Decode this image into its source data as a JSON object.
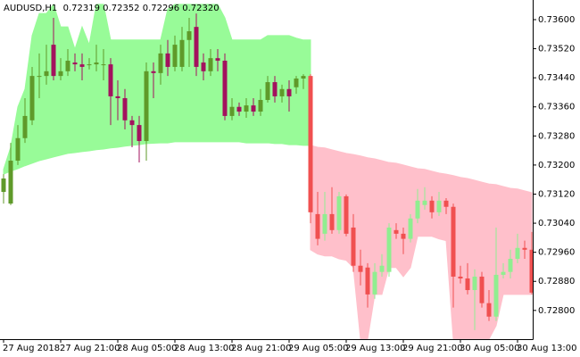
{
  "chart_data": {
    "type": "candlestick",
    "title": "AUDUSD,H1  0.72319 0.72352 0.72296 0.72320",
    "categories": [
      "27 Aug 2018",
      null,
      null,
      null,
      null,
      null,
      null,
      null,
      "27 Aug 21:00",
      null,
      null,
      null,
      null,
      null,
      null,
      null,
      "28 Aug 05:00",
      null,
      null,
      null,
      null,
      null,
      null,
      null,
      "28 Aug 13:00",
      null,
      null,
      null,
      null,
      null,
      null,
      null,
      "28 Aug 21:00",
      null,
      null,
      null,
      null,
      null,
      null,
      null,
      "29 Aug 05:00",
      null,
      null,
      null,
      null,
      null,
      null,
      null,
      "29 Aug 13:00",
      null,
      null,
      null,
      null,
      null,
      null,
      null,
      "29 Aug 21:00",
      null,
      null,
      null,
      null,
      null,
      null,
      null,
      "30 Aug 05:00",
      null,
      null,
      null,
      null,
      null,
      null,
      null,
      "30 Aug 13:00",
      null,
      null
    ],
    "ylim": [
      0.72721,
      0.73654
    ],
    "yticks": [
      {
        "value": 0.736,
        "label": "0.73600"
      },
      {
        "value": 0.7352,
        "label": "0.73520"
      },
      {
        "value": 0.7344,
        "label": "0.73440"
      },
      {
        "value": 0.7336,
        "label": "0.73360"
      },
      {
        "value": 0.7328,
        "label": "0.73280"
      },
      {
        "value": 0.732,
        "label": "0.73200"
      },
      {
        "value": 0.7312,
        "label": "0.73120"
      },
      {
        "value": 0.7304,
        "label": "0.73040"
      },
      {
        "value": 0.7296,
        "label": "0.72960"
      },
      {
        "value": 0.7288,
        "label": "0.72880"
      },
      {
        "value": 0.728,
        "label": "0.72800"
      }
    ],
    "grid": false,
    "series": [
      {
        "up_color": "#5f9a2a",
        "down_color": "#a3125e",
        "band_color": "#98fb98",
        "open": [
          0.73126,
          0.73094,
          0.73212,
          0.73274,
          0.73323,
          0.73445,
          0.73445,
          0.73531,
          0.73445,
          0.73458,
          0.73482,
          0.73477,
          0.73477,
          0.73477,
          0.73477,
          0.73477,
          0.73389,
          0.73384,
          0.73323,
          0.7331,
          0.73266,
          0.73458,
          0.73453,
          0.73507,
          0.7347,
          0.7347,
          0.73544,
          0.7358,
          0.73482,
          0.73458,
          0.73494,
          0.73487,
          0.73335,
          0.7336,
          0.73347,
          0.73364,
          0.73347,
          0.73379,
          0.73428,
          0.73389,
          0.73409,
          0.73414,
          0.73438,
          null,
          null,
          null,
          null,
          null,
          null,
          null,
          null,
          null,
          null,
          null,
          null,
          null,
          null,
          null,
          null,
          null,
          null,
          null,
          null,
          null,
          null,
          null,
          null,
          null,
          null,
          null,
          null,
          null,
          null,
          null,
          null
        ],
        "high": [
          0.73175,
          0.73261,
          0.7331,
          0.73384,
          0.7347,
          0.73507,
          0.73531,
          0.73605,
          0.73494,
          0.73519,
          0.73507,
          0.73507,
          0.73494,
          0.73531,
          0.73519,
          0.73494,
          0.73433,
          0.73409,
          0.73335,
          0.73335,
          0.73482,
          0.73482,
          0.73531,
          0.73544,
          0.73556,
          0.7358,
          0.73605,
          0.73617,
          0.73507,
          0.73519,
          0.73519,
          0.73507,
          0.73384,
          0.73372,
          0.73384,
          0.73384,
          0.73409,
          0.73445,
          0.73445,
          0.73421,
          0.73433,
          0.73445,
          0.7345,
          null,
          null,
          null,
          null,
          null,
          null,
          null,
          null,
          null,
          null,
          null,
          null,
          null,
          null,
          null,
          null,
          null,
          null,
          null,
          null,
          null,
          null,
          null,
          null,
          null,
          null,
          null,
          null,
          null,
          null,
          null,
          null
        ],
        "low": [
          0.73094,
          0.7309,
          0.732,
          0.73261,
          0.7331,
          0.73384,
          0.73421,
          0.73433,
          0.73433,
          0.73445,
          0.73458,
          0.73433,
          0.73463,
          0.73458,
          0.73433,
          0.7331,
          0.73323,
          0.73298,
          0.73249,
          0.73207,
          0.73212,
          0.73384,
          0.73421,
          0.73445,
          0.73458,
          0.73458,
          0.7347,
          0.73445,
          0.73433,
          0.73445,
          0.73458,
          0.73323,
          0.73323,
          0.73335,
          0.7333,
          0.73335,
          0.73335,
          0.73372,
          0.73372,
          0.73372,
          0.73347,
          0.73396,
          0.73409,
          null,
          null,
          null,
          null,
          null,
          null,
          null,
          null,
          null,
          null,
          null,
          null,
          null,
          null,
          null,
          null,
          null,
          null,
          null,
          null,
          null,
          null,
          null,
          null,
          null,
          null,
          null,
          null,
          null,
          null,
          null,
          null
        ],
        "close": [
          0.73163,
          0.73212,
          0.73274,
          0.73335,
          0.73445,
          0.73445,
          0.73458,
          0.73445,
          0.73458,
          0.73487,
          0.73477,
          0.7347,
          0.73477,
          0.73482,
          0.73477,
          0.73389,
          0.73384,
          0.73323,
          0.7331,
          0.73266,
          0.73458,
          0.73453,
          0.73507,
          0.7347,
          0.73531,
          0.73544,
          0.73568,
          0.7347,
          0.73458,
          0.73494,
          0.73487,
          0.73335,
          0.7336,
          0.73347,
          0.73364,
          0.73347,
          0.73379,
          0.73428,
          0.73389,
          0.73409,
          0.73389,
          0.73438,
          0.73445,
          null,
          null,
          null,
          null,
          null,
          null,
          null,
          null,
          null,
          null,
          null,
          null,
          null,
          null,
          null,
          null,
          null,
          null,
          null,
          null,
          null,
          null,
          null,
          null,
          null,
          null,
          null,
          null,
          null,
          null,
          null,
          null
        ],
        "band_upper": [
          0.73188,
          0.73249,
          0.7336,
          0.73409,
          0.73556,
          0.73617,
          0.73617,
          0.73642,
          0.7358,
          0.7358,
          0.73519,
          0.7358,
          0.73531,
          0.73642,
          0.73642,
          0.73544,
          0.73544,
          0.73544,
          0.73544,
          0.73544,
          0.73544,
          0.73544,
          0.73544,
          0.73629,
          0.73642,
          0.73642,
          0.73642,
          0.73642,
          0.73642,
          0.73642,
          0.73642,
          0.73605,
          0.73544,
          0.73544,
          0.73544,
          0.73544,
          0.73544,
          0.73556,
          0.73556,
          0.73556,
          0.73556,
          0.73549,
          0.73544,
          0.73544,
          null,
          null,
          null,
          null,
          null,
          null,
          null,
          null,
          null,
          null,
          null,
          null,
          null,
          null,
          null,
          null,
          null,
          null,
          null,
          null,
          null,
          null,
          null,
          null,
          null,
          null,
          null,
          null,
          null,
          null,
          null
        ],
        "band_lower": [
          0.73175,
          0.73183,
          0.7319,
          0.73198,
          0.73205,
          0.73212,
          0.73217,
          0.73222,
          0.73227,
          0.73232,
          0.73234,
          0.73237,
          0.73239,
          0.73242,
          0.73244,
          0.73247,
          0.73249,
          0.73252,
          0.73254,
          0.73256,
          0.73259,
          0.7326,
          0.73261,
          0.73261,
          0.73264,
          0.73264,
          0.73264,
          0.73264,
          0.73264,
          0.73264,
          0.73264,
          0.73264,
          0.73264,
          0.73264,
          0.73261,
          0.73261,
          0.73261,
          0.73261,
          0.73259,
          0.73259,
          0.73256,
          0.73256,
          0.73254,
          0.73254,
          null,
          null,
          null,
          null,
          null,
          null,
          null,
          null,
          null,
          null,
          null,
          null,
          null,
          null,
          null,
          null,
          null,
          null,
          null,
          null,
          null,
          null,
          null,
          null,
          null,
          null,
          null,
          null,
          null,
          null,
          null
        ]
      },
      {
        "up_color": "#90ee90",
        "down_color": "#f05050",
        "band_color": "#ffc0cb",
        "open": [
          null,
          null,
          null,
          null,
          null,
          null,
          null,
          null,
          null,
          null,
          null,
          null,
          null,
          null,
          null,
          null,
          null,
          null,
          null,
          null,
          null,
          null,
          null,
          null,
          null,
          null,
          null,
          null,
          null,
          null,
          null,
          null,
          null,
          null,
          null,
          null,
          null,
          null,
          null,
          null,
          null,
          null,
          null,
          0.73445,
          0.73065,
          0.73011,
          0.73065,
          0.73021,
          0.73114,
          0.73028,
          0.72923,
          0.72918,
          0.72844,
          0.72906,
          0.72906,
          0.73021,
          0.73011,
          0.72997,
          0.73053,
          0.7309,
          0.73102,
          0.7307,
          0.73102,
          0.73085,
          0.72893,
          0.72888,
          0.72856,
          0.72893,
          0.7282,
          0.72783,
          0.72898,
          0.72906,
          0.72942,
          0.72972,
          0.72967
        ],
        "high": [
          null,
          null,
          null,
          null,
          null,
          null,
          null,
          null,
          null,
          null,
          null,
          null,
          null,
          null,
          null,
          null,
          null,
          null,
          null,
          null,
          null,
          null,
          null,
          null,
          null,
          null,
          null,
          null,
          null,
          null,
          null,
          null,
          null,
          null,
          null,
          null,
          null,
          null,
          null,
          null,
          null,
          null,
          null,
          0.7345,
          0.73126,
          0.73126,
          0.73139,
          0.73126,
          0.73119,
          0.73065,
          0.72967,
          0.7293,
          0.7293,
          0.72955,
          0.7304,
          0.7304,
          0.73028,
          0.73065,
          0.73134,
          0.73139,
          0.73114,
          0.73126,
          0.73109,
          0.73094,
          0.72923,
          0.7293,
          0.72913,
          0.72906,
          0.72856,
          0.73028,
          0.7293,
          0.72967,
          0.73011,
          0.72992,
          0.73016
        ],
        "low": [
          null,
          null,
          null,
          null,
          null,
          null,
          null,
          null,
          null,
          null,
          null,
          null,
          null,
          null,
          null,
          null,
          null,
          null,
          null,
          null,
          null,
          null,
          null,
          null,
          null,
          null,
          null,
          null,
          null,
          null,
          null,
          null,
          null,
          null,
          null,
          null,
          null,
          null,
          null,
          null,
          null,
          null,
          null,
          0.7304,
          0.72979,
          0.72992,
          0.73011,
          0.73011,
          0.73004,
          0.72906,
          0.72869,
          0.72808,
          0.72832,
          0.72893,
          0.72893,
          0.72997,
          0.72955,
          0.72987,
          0.7304,
          0.73077,
          0.73053,
          0.7306,
          0.73065,
          0.72808,
          0.72874,
          0.72844,
          0.72746,
          0.72808,
          0.72771,
          0.72771,
          0.72888,
          0.72888,
          0.7293,
          0.72942,
          0.72844
        ],
        "close": [
          null,
          null,
          null,
          null,
          null,
          null,
          null,
          null,
          null,
          null,
          null,
          null,
          null,
          null,
          null,
          null,
          null,
          null,
          null,
          null,
          null,
          null,
          null,
          null,
          null,
          null,
          null,
          null,
          null,
          null,
          null,
          null,
          null,
          null,
          null,
          null,
          null,
          null,
          null,
          null,
          null,
          null,
          null,
          0.7307,
          0.72997,
          0.73065,
          0.73021,
          0.73114,
          0.73011,
          0.72923,
          0.72906,
          0.72844,
          0.72906,
          0.72923,
          0.73028,
          0.73011,
          0.72997,
          0.73053,
          0.73102,
          0.73102,
          0.7307,
          0.73102,
          0.73085,
          0.72893,
          0.72888,
          0.72856,
          0.72893,
          0.7282,
          0.72783,
          0.72898,
          0.72906,
          0.72942,
          0.72972,
          0.72967,
          0.72849
        ],
        "band_upper": [
          null,
          null,
          null,
          null,
          null,
          null,
          null,
          null,
          null,
          null,
          null,
          null,
          null,
          null,
          null,
          null,
          null,
          null,
          null,
          null,
          null,
          null,
          null,
          null,
          null,
          null,
          null,
          null,
          null,
          null,
          null,
          null,
          null,
          null,
          null,
          null,
          null,
          null,
          null,
          null,
          null,
          null,
          null,
          0.73254,
          0.73249,
          0.73247,
          0.73242,
          0.73237,
          0.73232,
          0.73229,
          0.73225,
          0.7322,
          0.73217,
          0.73212,
          0.73207,
          0.73205,
          0.732,
          0.73195,
          0.7319,
          0.73188,
          0.73183,
          0.73178,
          0.73175,
          0.73171,
          0.73166,
          0.73163,
          0.73158,
          0.73153,
          0.73148,
          0.73146,
          0.73141,
          0.73136,
          0.73134,
          0.73129,
          0.73124
        ],
        "band_lower": [
          null,
          null,
          null,
          null,
          null,
          null,
          null,
          null,
          null,
          null,
          null,
          null,
          null,
          null,
          null,
          null,
          null,
          null,
          null,
          null,
          null,
          null,
          null,
          null,
          null,
          null,
          null,
          null,
          null,
          null,
          null,
          null,
          null,
          null,
          null,
          null,
          null,
          null,
          null,
          null,
          null,
          null,
          null,
          0.72967,
          0.72955,
          0.7295,
          0.7295,
          0.72942,
          0.72938,
          0.72918,
          0.72721,
          0.72721,
          0.72844,
          0.72844,
          0.72918,
          0.72918,
          0.72893,
          0.72918,
          0.73004,
          0.73004,
          0.73004,
          0.72997,
          0.72992,
          0.72721,
          0.72721,
          0.72721,
          0.72721,
          0.72721,
          0.72721,
          0.72758,
          0.72844,
          0.72844,
          0.72844,
          0.72844,
          0.72844
        ]
      }
    ]
  }
}
